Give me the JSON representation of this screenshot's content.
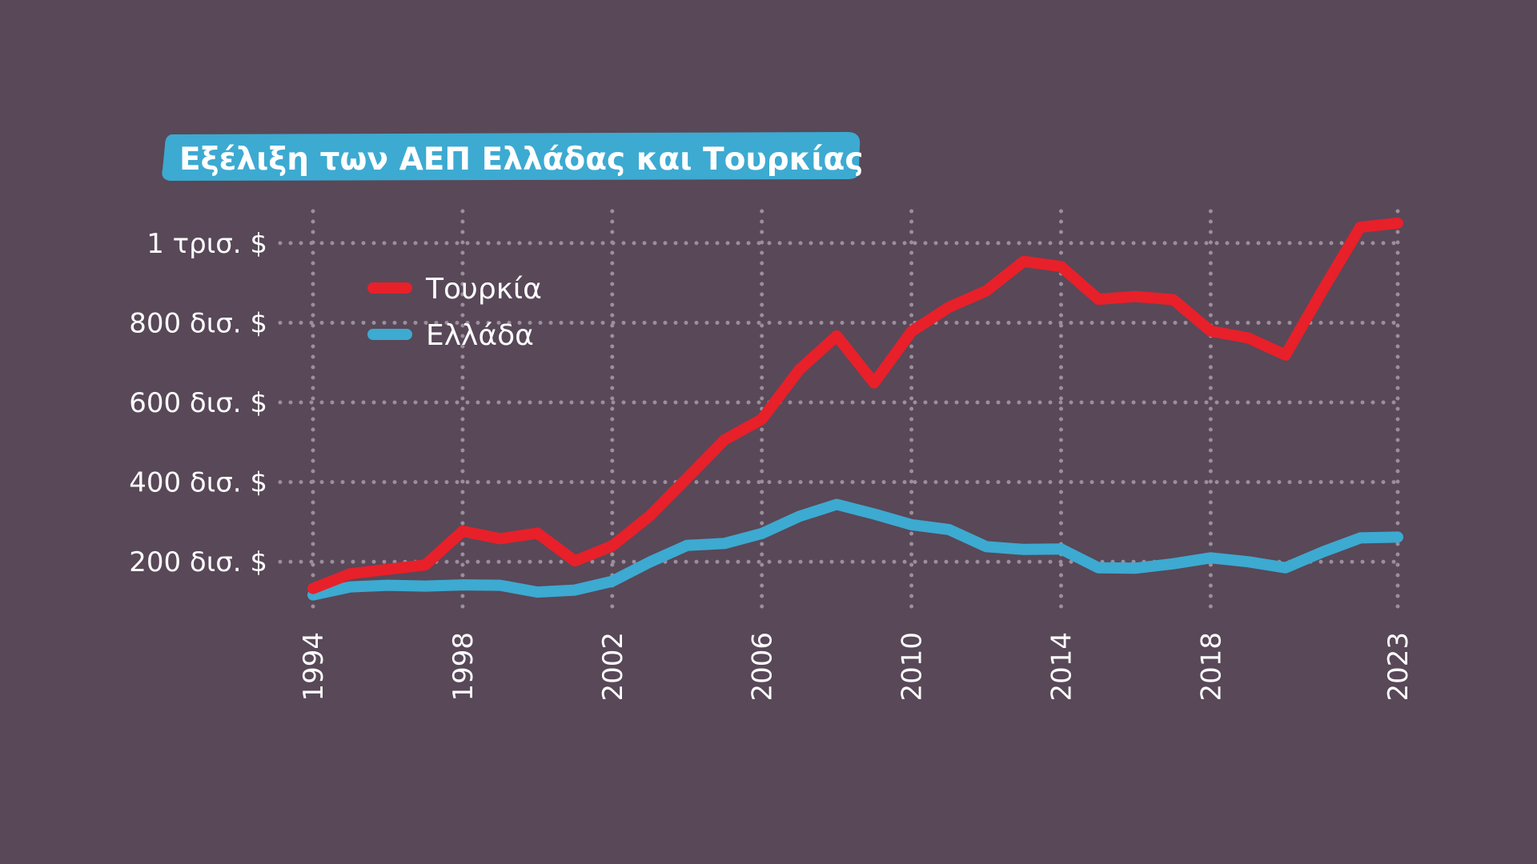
{
  "chart_data": {
    "type": "line",
    "title": "Εξέλιξη των ΑΕΠ Ελλάδας και Τουρκίας",
    "x": [
      1994,
      1995,
      1996,
      1997,
      1998,
      1999,
      2000,
      2001,
      2002,
      2003,
      2004,
      2005,
      2006,
      2007,
      2008,
      2009,
      2010,
      2011,
      2012,
      2013,
      2014,
      2015,
      2016,
      2017,
      2018,
      2019,
      2020,
      2021,
      2022,
      2023
    ],
    "series": [
      {
        "name": "Τουρκία",
        "color": "#e8202a",
        "values": [
          133,
          170,
          181,
          192,
          277,
          258,
          272,
          202,
          240,
          315,
          410,
          506,
          558,
          682,
          767,
          649,
          778,
          839,
          880,
          954,
          941,
          859,
          866,
          858,
          779,
          762,
          719,
          883,
          1040,
          1050
        ]
      },
      {
        "name": "Ελλάδα",
        "color": "#3daad1",
        "values": [
          117,
          137,
          141,
          139,
          142,
          141,
          124,
          129,
          151,
          199,
          241,
          246,
          271,
          314,
          344,
          320,
          293,
          281,
          238,
          231,
          232,
          185,
          184,
          195,
          210,
          200,
          185,
          225,
          260,
          262
        ]
      }
    ],
    "xticks": [
      "1994",
      "1998",
      "2002",
      "2006",
      "2010",
      "2014",
      "2018",
      "2023"
    ],
    "yticks": [
      {
        "value": 200,
        "label": "200 δισ. $"
      },
      {
        "value": 400,
        "label": "400 δισ. $"
      },
      {
        "value": 600,
        "label": "600 δισ. $"
      },
      {
        "value": 800,
        "label": "800 δισ. $"
      },
      {
        "value": 1000,
        "label": "1 τρισ. $"
      }
    ],
    "xlim": [
      1994,
      2023
    ],
    "ylim": [
      80,
      1080
    ],
    "grid": true,
    "legend_position": "top-left",
    "background_color": "#584858",
    "title_badge_color": "#3daad1",
    "grid_color": "#9c8f9c"
  }
}
